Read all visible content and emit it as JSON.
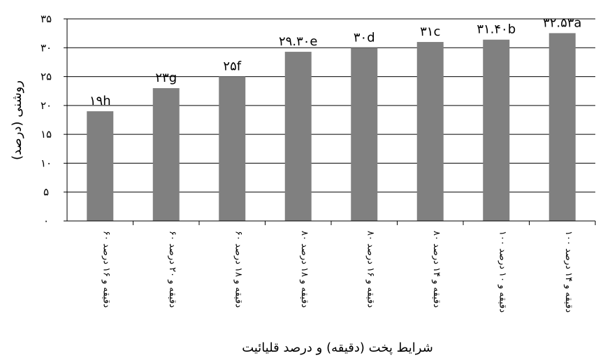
{
  "chart_data": {
    "type": "bar",
    "categories": [
      "۶۰ دقیقه و ۱۶ درصد",
      "۶۰ دقیقه و ۲۰ درصد",
      "۶۰ دقیقه و ۱۸ درصد",
      "۸۰ دقیقه و ۱۸ درصد",
      "۸۰ دقیقه و ۱۶ درصد",
      "۸۰ دقیقه و ۱۴ درصد",
      "۱۰۰ دقیقه و ۱۰ درصد",
      "۱۰۰ دقیقه و ۱۴ درصد"
    ],
    "values": [
      19,
      23,
      25,
      29.3,
      30,
      31,
      31.4,
      32.53
    ],
    "data_labels": [
      "۱۹h",
      "۲۳g",
      "۲۵f",
      "۲۹.۳۰e",
      "۳۰d",
      "۳۱c",
      "۳۱.۴۰b",
      "۳۲.۵۳a"
    ],
    "ylim": [
      0,
      35
    ],
    "yticks": [
      0,
      5,
      10,
      15,
      20,
      25,
      30,
      35
    ],
    "ytick_labels": [
      "۰",
      "۵",
      "۱۰",
      "۱۵",
      "۲۰",
      "۲۵",
      "۳۰",
      "۳۵"
    ],
    "ylabel": "روشنی (درصد)",
    "xlabel": "شرایط پخت (دقیقه) و درصد قلیائیت",
    "grid": "horizontal",
    "bar_color": "#808080",
    "grid_color": "#000000"
  }
}
